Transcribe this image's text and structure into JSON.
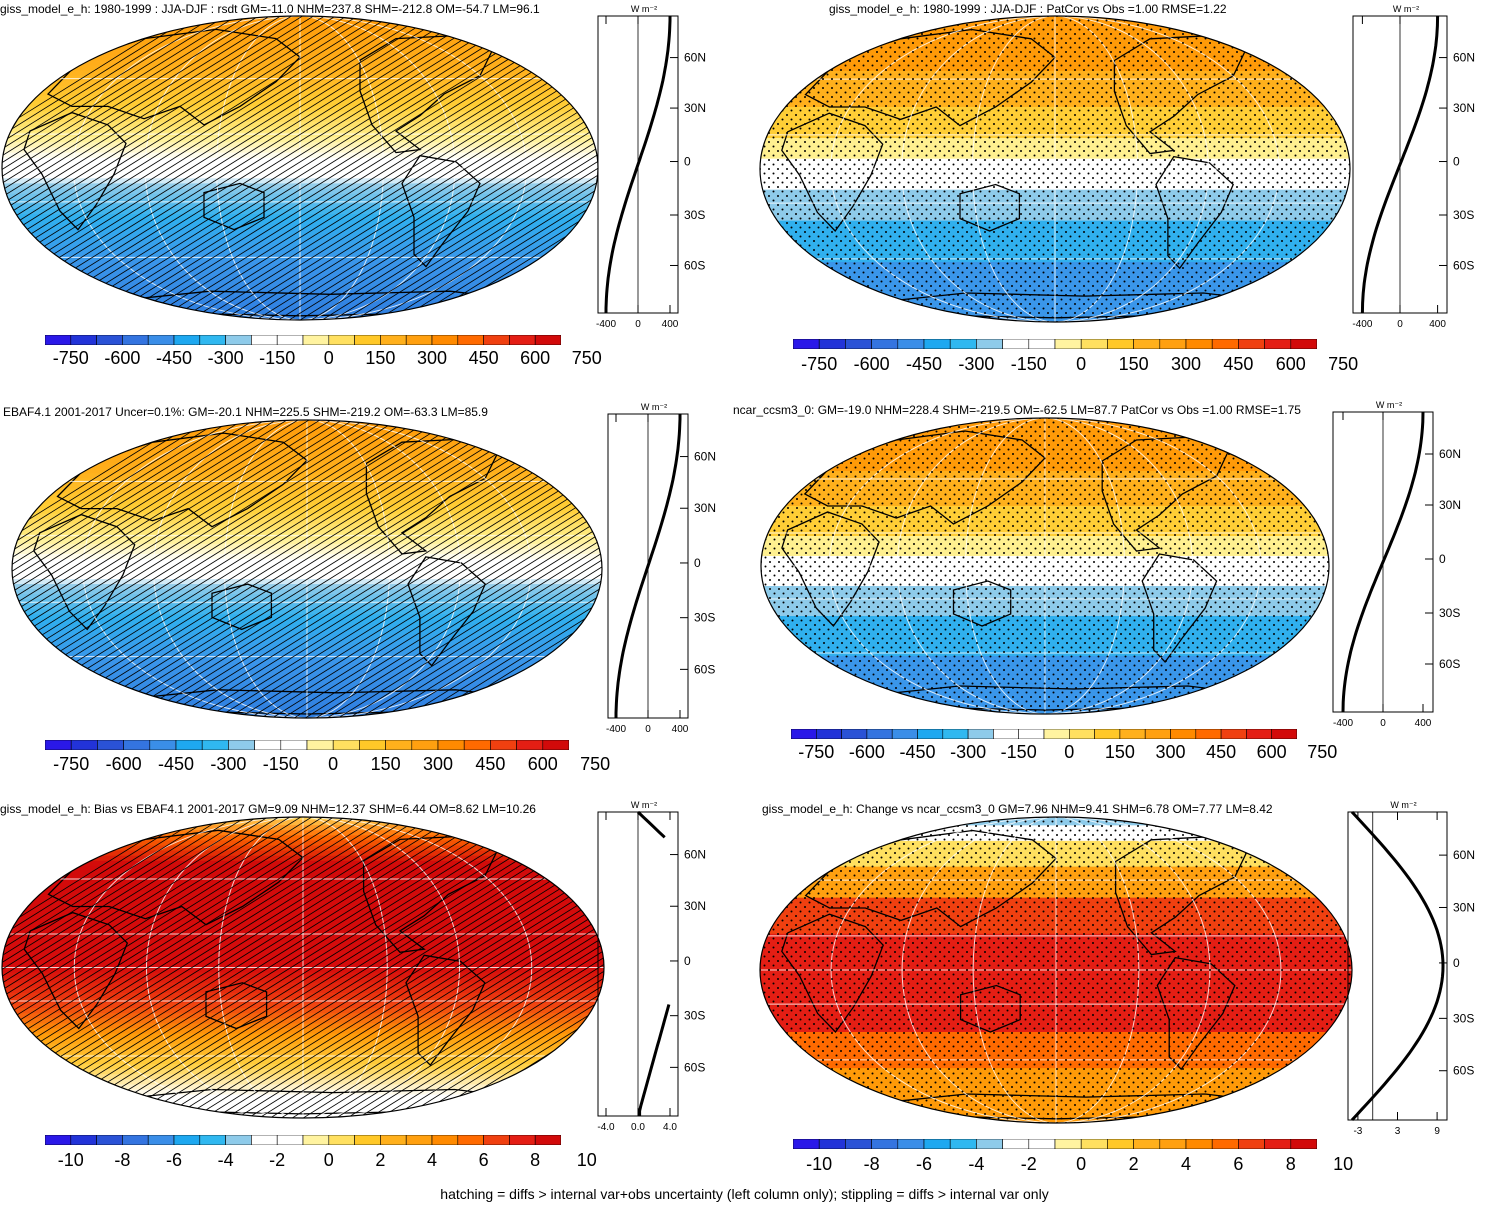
{
  "panels": [
    {
      "id": "p1",
      "title": "giss_model_e_h: 1980-1999 : JJA-DJF : rsdt GM=-11.0 NHM=237.8 SHM=-212.8 OM=-54.7 LM=96.1",
      "pattern": "hatch",
      "field": "seasonal",
      "profile": {
        "unit": "W m⁻²",
        "xticks": [
          "-400",
          "0",
          "400"
        ],
        "yticks": [
          "60N",
          "30N",
          "0",
          "30S",
          "60S"
        ],
        "curve": "seasonal"
      },
      "colorbar": {
        "labels": [
          "-750",
          "-600",
          "-450",
          "-300",
          "-150",
          "0",
          "150",
          "300",
          "450",
          "600",
          "750"
        ]
      }
    },
    {
      "id": "p2",
      "title": "giss_model_e_h: 1980-1999 : JJA-DJF : PatCor vs Obs =1.00 RMSE=1.22",
      "pattern": "stipple",
      "field": "seasonal-banded",
      "profile": {
        "unit": "W m⁻²",
        "xticks": [
          "-400",
          "0",
          "400"
        ],
        "yticks": [
          "60N",
          "30N",
          "0",
          "30S",
          "60S"
        ],
        "curve": "seasonal"
      },
      "colorbar": {
        "labels": [
          "-750",
          "-600",
          "-450",
          "-300",
          "-150",
          "0",
          "150",
          "300",
          "450",
          "600",
          "750"
        ]
      }
    },
    {
      "id": "p3",
      "title": "EBAF4.1 2001-2017 Uncer=0.1%: GM=-20.1 NHM=225.5 SHM=-219.2 OM=-63.3 LM=85.9",
      "pattern": "hatch",
      "field": "seasonal",
      "profile": {
        "unit": "W m⁻²",
        "xticks": [
          "-400",
          "0",
          "400"
        ],
        "yticks": [
          "60N",
          "30N",
          "0",
          "30S",
          "60S"
        ],
        "curve": "seasonal"
      },
      "colorbar": {
        "labels": [
          "-750",
          "-600",
          "-450",
          "-300",
          "-150",
          "0",
          "150",
          "300",
          "450",
          "600",
          "750"
        ]
      }
    },
    {
      "id": "p4",
      "title": "ncar_ccsm3_0: GM=-19.0 NHM=228.4 SHM=-219.5 OM=-62.5 LM=87.7 PatCor vs Obs =1.00 RMSE=1.75",
      "pattern": "stipple",
      "field": "seasonal-banded",
      "profile": {
        "unit": "W m⁻²",
        "xticks": [
          "-400",
          "0",
          "400"
        ],
        "yticks": [
          "60N",
          "30N",
          "0",
          "30S",
          "60S"
        ],
        "curve": "seasonal"
      },
      "colorbar": {
        "labels": [
          "-750",
          "-600",
          "-450",
          "-300",
          "-150",
          "0",
          "150",
          "300",
          "450",
          "600",
          "750"
        ]
      }
    },
    {
      "id": "p5",
      "title": "giss_model_e_h: Bias vs EBAF4.1 2001-2017 GM=9.09 NHM=12.37 SHM=6.44 OM=8.62 LM=10.26",
      "pattern": "hatch",
      "field": "bias",
      "profile": {
        "unit": "W m⁻²",
        "xticks": [
          "-4.0",
          "0.0",
          "4.0"
        ],
        "yticks": [
          "60N",
          "30N",
          "0",
          "30S",
          "60S"
        ],
        "curve": "bias"
      },
      "colorbar": {
        "labels": [
          "-10",
          "-8",
          "-6",
          "-4",
          "-2",
          "0",
          "2",
          "4",
          "6",
          "8",
          "10"
        ]
      }
    },
    {
      "id": "p6",
      "title": "giss_model_e_h: Change vs ncar_ccsm3_0 GM=7.96 NHM=9.41 SHM=6.78 OM=7.77 LM=8.42",
      "pattern": "stipple",
      "field": "change",
      "profile": {
        "unit": "W m⁻²",
        "xticks": [
          "-3",
          "3",
          "9"
        ],
        "yticks": [
          "60N",
          "30N",
          "0",
          "30S",
          "60S"
        ],
        "curve": "change"
      },
      "colorbar": {
        "labels": [
          "-10",
          "-8",
          "-6",
          "-4",
          "-2",
          "0",
          "2",
          "4",
          "6",
          "8",
          "10"
        ]
      }
    }
  ],
  "palette": [
    "#2a18e8",
    "#2233d8",
    "#2a52d6",
    "#3474e0",
    "#3a8ee8",
    "#1ea8f0",
    "#30b8f0",
    "#8ecbea",
    "#ffffff",
    "#ffffff",
    "#fff3a0",
    "#ffe060",
    "#ffc828",
    "#ffb01c",
    "#ffa010",
    "#ff8a00",
    "#ff6a00",
    "#f04010",
    "#e41e14",
    "#d20a0a"
  ],
  "footer": "hatching = diffs > internal var+obs uncertainty (left column only); stippling = diffs > internal var only"
}
